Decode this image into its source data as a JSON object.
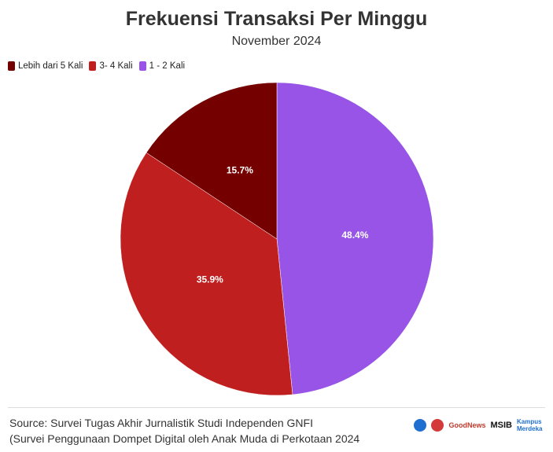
{
  "header": {
    "title": "Frekuensi Transaksi Per Minggu",
    "subtitle": "November 2024"
  },
  "chart_data": {
    "type": "pie",
    "title": "Frekuensi Transaksi Per Minggu",
    "subtitle": "November 2024",
    "legend_placement": "top-left",
    "slices": [
      {
        "label": "1 - 2 Kali",
        "value": 48.4,
        "value_label": "48.4%",
        "color": "#9754e6"
      },
      {
        "label": "3- 4 Kali",
        "value": 35.9,
        "value_label": "35.9%",
        "color": "#c01f1f"
      },
      {
        "label": "Lebih dari 5 Kali",
        "value": 15.7,
        "value_label": "15.7%",
        "color": "#740000"
      }
    ],
    "legend_order": [
      "Lebih dari 5 Kali",
      "3- 4 Kali",
      "1 - 2 Kali"
    ]
  },
  "legend": {
    "items": [
      {
        "label": "Lebih dari 5 Kali",
        "color": "#740000"
      },
      {
        "label": "3- 4 Kali",
        "color": "#c01f1f"
      },
      {
        "label": "1 - 2 Kali",
        "color": "#9754e6"
      }
    ]
  },
  "footer": {
    "source_line1": "Source: Survei Tugas Akhir Jurnalistik Studi Independen GNFI",
    "source_line2": "(Survei Penggunaan Dompet Digital oleh Anak Muda di Perkotaan 2024",
    "logos": {
      "goodnews": "GoodNews",
      "msib": "MSIB",
      "kampus_merdeka": "Kampus Merdeka"
    }
  }
}
